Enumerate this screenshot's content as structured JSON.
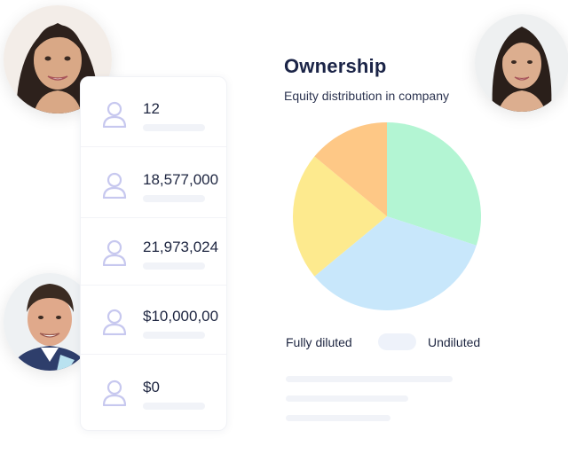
{
  "ownership": {
    "title": "Ownership",
    "subtitle": "Equity distribution in company"
  },
  "stats": [
    {
      "value": "12",
      "icon": "user-icon"
    },
    {
      "value": "18,577,000",
      "icon": "user-icon"
    },
    {
      "value": "21,973,024",
      "icon": "user-icon"
    },
    {
      "value": "$10,000,00",
      "icon": "user-icon"
    },
    {
      "value": "$0",
      "icon": "user-icon"
    }
  ],
  "toggle": {
    "left_label": "Fully diluted",
    "right_label": "Undiluted"
  },
  "colors": {
    "slice_green": "#b3f5d3",
    "slice_blue": "#c8e7fb",
    "slice_yellow": "#fdea8e",
    "slice_orange": "#fec886",
    "icon": "#c7c8ef"
  },
  "chart_data": {
    "type": "pie",
    "categories": [
      "",
      "",
      "",
      ""
    ],
    "values": [
      30,
      34,
      22,
      14
    ]
  }
}
